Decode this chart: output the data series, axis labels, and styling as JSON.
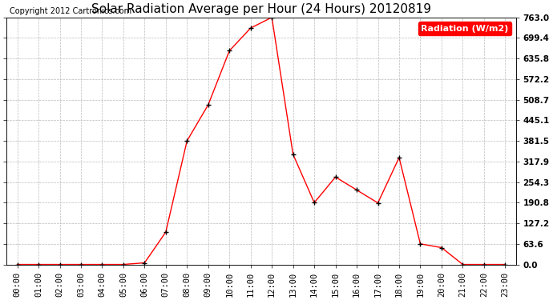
{
  "title": "Solar Radiation Average per Hour (24 Hours) 20120819",
  "copyright_text": "Copyright 2012 Cartronics.com",
  "legend_label": "Radiation (W/m2)",
  "hours": [
    0,
    1,
    2,
    3,
    4,
    5,
    6,
    7,
    8,
    9,
    10,
    11,
    12,
    13,
    14,
    15,
    16,
    17,
    18,
    19,
    20,
    21,
    22,
    23
  ],
  "x_labels": [
    "00:00",
    "01:00",
    "02:00",
    "03:00",
    "04:00",
    "05:00",
    "06:00",
    "07:00",
    "08:00",
    "09:00",
    "10:00",
    "11:00",
    "12:00",
    "13:00",
    "14:00",
    "15:00",
    "16:00",
    "17:00",
    "18:00",
    "19:00",
    "20:00",
    "21:00",
    "22:00",
    "23:00"
  ],
  "values": [
    0.0,
    0.0,
    0.0,
    0.0,
    0.0,
    0.0,
    5.0,
    100.0,
    381.5,
    493.0,
    660.0,
    730.0,
    763.0,
    340.0,
    190.8,
    270.0,
    230.0,
    190.0,
    330.0,
    63.6,
    52.0,
    0.0,
    0.0,
    0.0
  ],
  "line_color": "red",
  "marker": "+",
  "marker_color": "black",
  "grid_color": "#bbbbbb",
  "bg_color": "white",
  "ylim": [
    0.0,
    763.0
  ],
  "ytick_values": [
    0.0,
    63.6,
    127.2,
    190.8,
    254.3,
    317.9,
    381.5,
    445.1,
    508.7,
    572.2,
    635.8,
    699.4,
    763.0
  ],
  "ytick_labels": [
    "0.0",
    "63.6",
    "127.2",
    "190.8",
    "254.3",
    "317.9",
    "381.5",
    "445.1",
    "508.7",
    "572.2",
    "635.8",
    "699.4",
    "763.0"
  ],
  "title_fontsize": 11,
  "copyright_fontsize": 7,
  "legend_fontsize": 8,
  "tick_fontsize": 7.5,
  "figwidth": 6.9,
  "figheight": 3.75,
  "dpi": 100
}
